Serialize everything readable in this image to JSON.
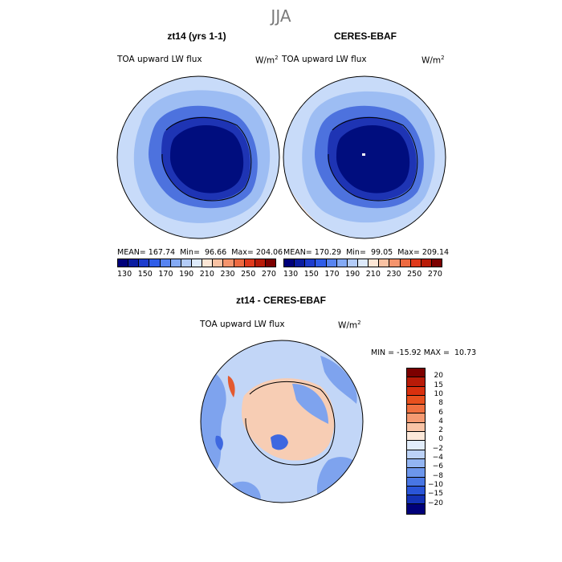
{
  "figure": {
    "season": "JJA",
    "variable": "TOA upward LW flux",
    "units_base": "W/m",
    "units_exp": "2"
  },
  "panels": {
    "model": {
      "title": "zt14 (yrs 1-1)",
      "mean_label": "MEAN=",
      "mean": "167.74",
      "min_label": "Min=",
      "min": "96.66",
      "max_label": "Max=",
      "max": "204.06"
    },
    "obs": {
      "title": "CERES-EBAF",
      "mean_label": "MEAN=",
      "mean": "170.29",
      "min_label": "Min=",
      "min": "99.05",
      "max_label": "Max=",
      "max": "209.14"
    },
    "diff": {
      "title": "zt14 - CERES-EBAF",
      "minmax_text": "MIN = -15.92 MAX =  10.73"
    }
  },
  "colorbars": {
    "abs_colors": [
      "#00007a",
      "#0a1ca0",
      "#1d3ccd",
      "#2f5de8",
      "#5784f0",
      "#84aaf5",
      "#b3ccf8",
      "#ddeafb",
      "#fde7d6",
      "#f9c2a3",
      "#f5946c",
      "#ee6a40",
      "#e03a1c",
      "#b81b08",
      "#7c0000"
    ],
    "abs_ticks": [
      "130",
      "150",
      "170",
      "190",
      "210",
      "230",
      "250",
      "270"
    ],
    "diff_colors": [
      "#7c0000",
      "#b81b08",
      "#d9300e",
      "#e8501e",
      "#f07040",
      "#f59a72",
      "#f9c4a6",
      "#fde9da",
      "#e2edfb",
      "#bcd2f7",
      "#93b5f2",
      "#6c96ec",
      "#4876e4",
      "#2a55d8",
      "#1432b6",
      "#00007a"
    ],
    "diff_ticks": [
      "20",
      "15",
      "10",
      "8",
      "6",
      "4",
      "2",
      "0",
      "−2",
      "−4",
      "−6",
      "−8",
      "−10",
      "−15",
      "−20"
    ]
  },
  "colors": {
    "ocean_far": "#c8dbf9",
    "ocean_mid": "#9dbdf3",
    "shelf": "#4d72de",
    "interior_ring": "#1e34b4",
    "interior": "#000d7e",
    "warm_edge": "#fde7d6",
    "diff_bg": "#c2d6f7",
    "diff_neg": "#7ea3ee",
    "diff_neg_strong": "#3e68e0",
    "diff_pos": "#f7cdb4",
    "diff_pos_strong": "#e35a30"
  }
}
